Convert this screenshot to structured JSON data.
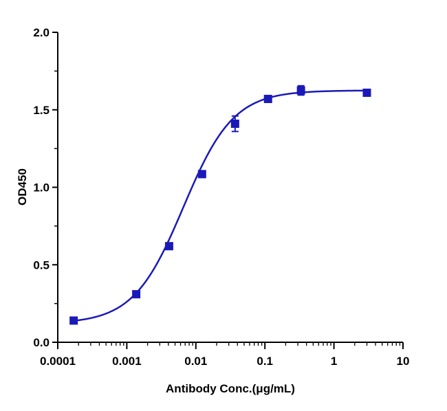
{
  "chart_data": {
    "type": "scatter",
    "title": "",
    "xlabel": "Antibody Conc.(μg/mL)",
    "ylabel": "OD450",
    "x_scale": "log",
    "xlim": [
      0.0001,
      10
    ],
    "ylim": [
      0.0,
      2.0
    ],
    "x_ticks": [
      {
        "value": 0.0001,
        "label": "0.0001"
      },
      {
        "value": 0.001,
        "label": "0.001"
      },
      {
        "value": 0.01,
        "label": "0.01"
      },
      {
        "value": 0.1,
        "label": "0.1"
      },
      {
        "value": 1,
        "label": "1"
      },
      {
        "value": 10,
        "label": "10"
      }
    ],
    "y_ticks": [
      {
        "value": 0.0,
        "label": "0.0"
      },
      {
        "value": 0.5,
        "label": "0.5"
      },
      {
        "value": 1.0,
        "label": "1.0"
      },
      {
        "value": 1.5,
        "label": "1.5"
      },
      {
        "value": 2.0,
        "label": "2.0"
      }
    ],
    "grid": false,
    "legend": "none",
    "series": [
      {
        "color": "#1a1ab8",
        "marker": "square",
        "fit": "4PL",
        "points": [
          {
            "x": 0.00017,
            "y": 0.14,
            "err": 0.01
          },
          {
            "x": 0.00137,
            "y": 0.31,
            "err": 0.01
          },
          {
            "x": 0.0041,
            "y": 0.62,
            "err": 0.02
          },
          {
            "x": 0.0123,
            "y": 1.085,
            "err": 0.02
          },
          {
            "x": 0.037,
            "y": 1.41,
            "err": 0.05
          },
          {
            "x": 0.111,
            "y": 1.57,
            "err": 0.02
          },
          {
            "x": 0.333,
            "y": 1.625,
            "err": 0.03
          },
          {
            "x": 3.0,
            "y": 1.61,
            "err": 0.01
          }
        ]
      }
    ],
    "fit_params": {
      "bottom": 0.12,
      "top": 1.625,
      "log_ec50": -2.18,
      "hill": 1.2
    }
  }
}
